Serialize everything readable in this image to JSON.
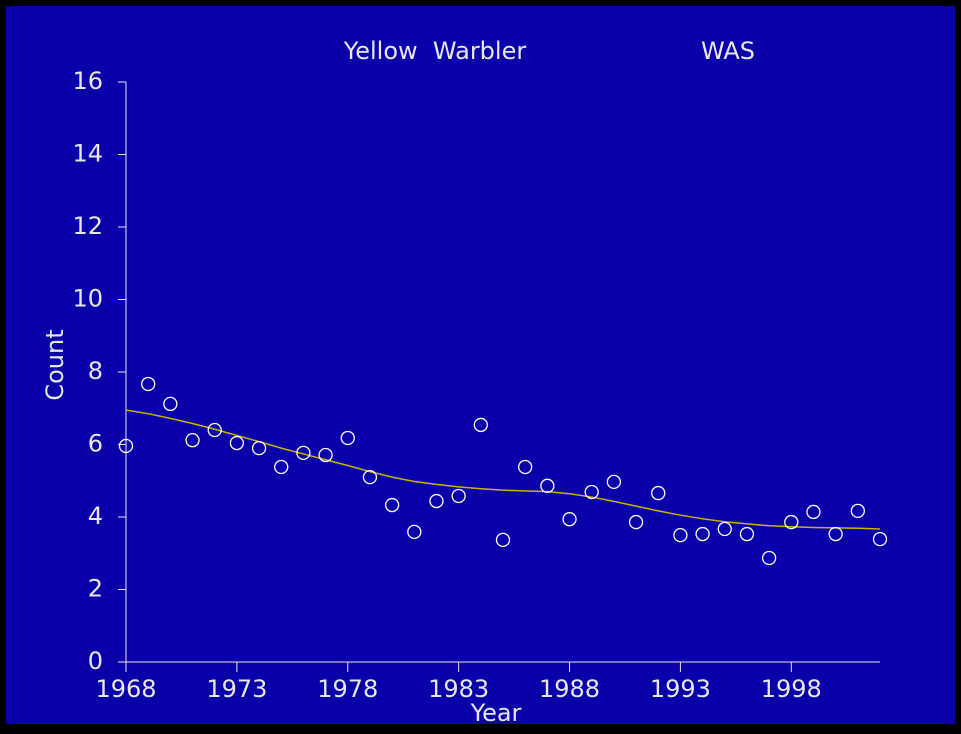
{
  "chart_data": {
    "type": "scatter",
    "title": "Yellow  Warbler",
    "annotations": [
      "WAS"
    ],
    "xlabel": "Year",
    "ylabel": "Count",
    "x": [
      1968,
      1969,
      1970,
      1971,
      1972,
      1973,
      1974,
      1975,
      1976,
      1977,
      1978,
      1979,
      1980,
      1981,
      1982,
      1983,
      1984,
      1985,
      1986,
      1987,
      1988,
      1989,
      1990,
      1991,
      1992,
      1993,
      1994,
      1995,
      1996,
      1997,
      1998,
      1999,
      2000,
      2001,
      2002
    ],
    "series": [
      {
        "color": "#ffffff",
        "values": [
          5.96,
          7.67,
          7.12,
          6.12,
          6.4,
          6.04,
          5.9,
          5.38,
          5.77,
          5.71,
          6.18,
          5.1,
          4.33,
          3.59,
          4.44,
          4.58,
          6.54,
          3.37,
          5.38,
          4.86,
          3.94,
          4.69,
          4.97,
          3.86,
          4.66,
          3.5,
          3.53,
          3.67,
          3.53,
          2.87,
          3.86,
          4.14,
          3.53,
          4.17,
          3.39
        ]
      },
      {
        "color": "#c8b400",
        "values": [
          6.95,
          6.85,
          6.72,
          6.58,
          6.42,
          6.25,
          6.08,
          5.9,
          5.74,
          5.58,
          5.42,
          5.25,
          5.1,
          4.98,
          4.9,
          4.83,
          4.78,
          4.74,
          4.72,
          4.7,
          4.64,
          4.55,
          4.43,
          4.3,
          4.17,
          4.05,
          3.95,
          3.87,
          3.81,
          3.76,
          3.73,
          3.71,
          3.7,
          3.69,
          3.67
        ]
      }
    ],
    "xlim": [
      1968,
      2002
    ],
    "ylim": [
      0,
      16
    ],
    "xticks": [
      1968,
      1973,
      1978,
      1983,
      1988,
      1993,
      1998
    ],
    "yticks": [
      0,
      2,
      4,
      6,
      8,
      10,
      12,
      14,
      16
    ],
    "background": "#0a00aa",
    "axis_color": "#e8e8e8"
  }
}
